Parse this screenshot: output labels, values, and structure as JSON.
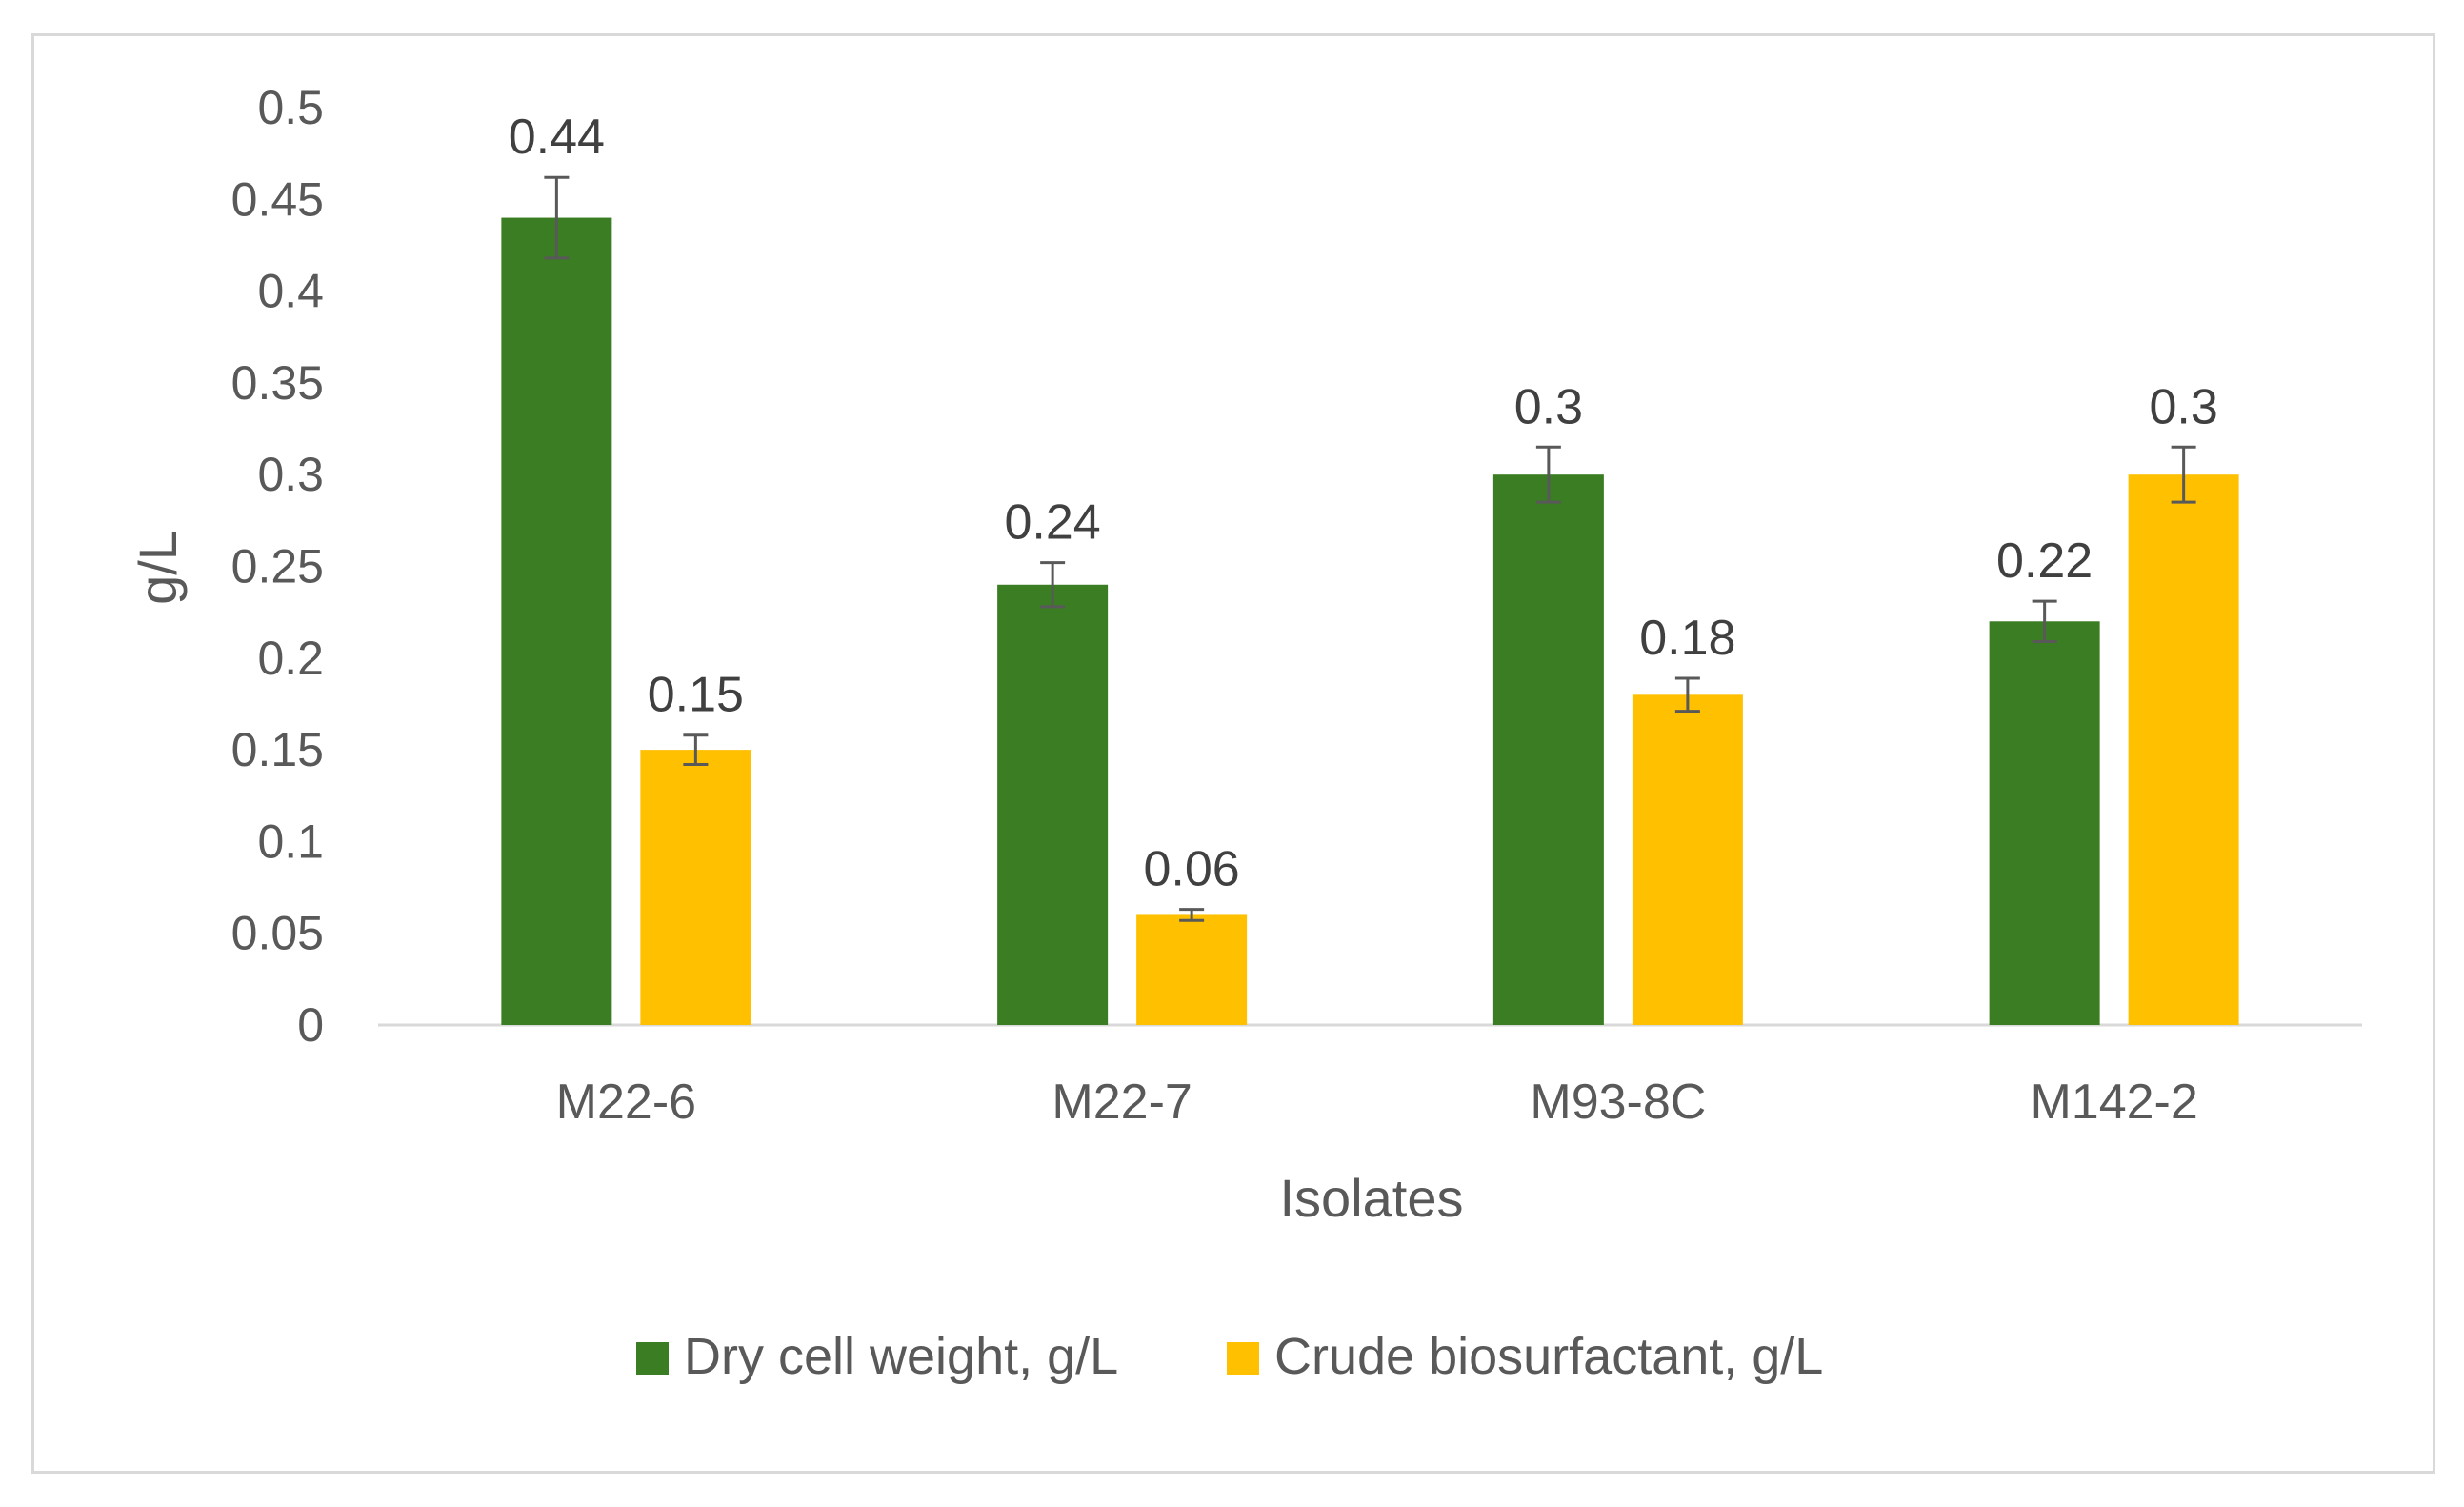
{
  "chart_data": {
    "type": "bar",
    "title": "",
    "xlabel": "Isolates",
    "ylabel": "g/L",
    "ylim": [
      0,
      0.5
    ],
    "yticks": [
      "0",
      "0.05",
      "0.1",
      "0.15",
      "0.2",
      "0.25",
      "0.3",
      "0.35",
      "0.4",
      "0.45",
      "0.5"
    ],
    "grid": false,
    "legend_position": "bottom",
    "categories": [
      "M22-6",
      "M22-7",
      "M93-8C",
      "M142-2"
    ],
    "series": [
      {
        "name": "Dry cell weight, g/L",
        "color": "#3a7d22",
        "values": [
          0.44,
          0.24,
          0.3,
          0.22
        ],
        "labels": [
          "0.44",
          "0.24",
          "0.3",
          "0.22"
        ],
        "errors": [
          0.022,
          0.012,
          0.015,
          0.011
        ]
      },
      {
        "name": "Crude biosurfactant, g/L",
        "color": "#ffc000",
        "values": [
          0.15,
          0.06,
          0.18,
          0.3
        ],
        "labels": [
          "0.15",
          "0.06",
          "0.18",
          "0.3"
        ],
        "errors": [
          0.008,
          0.003,
          0.009,
          0.015
        ]
      }
    ]
  },
  "colors": {
    "axis": "#d9d9d9",
    "text": "#595959",
    "label": "#404040",
    "errorbar": "#595959"
  }
}
